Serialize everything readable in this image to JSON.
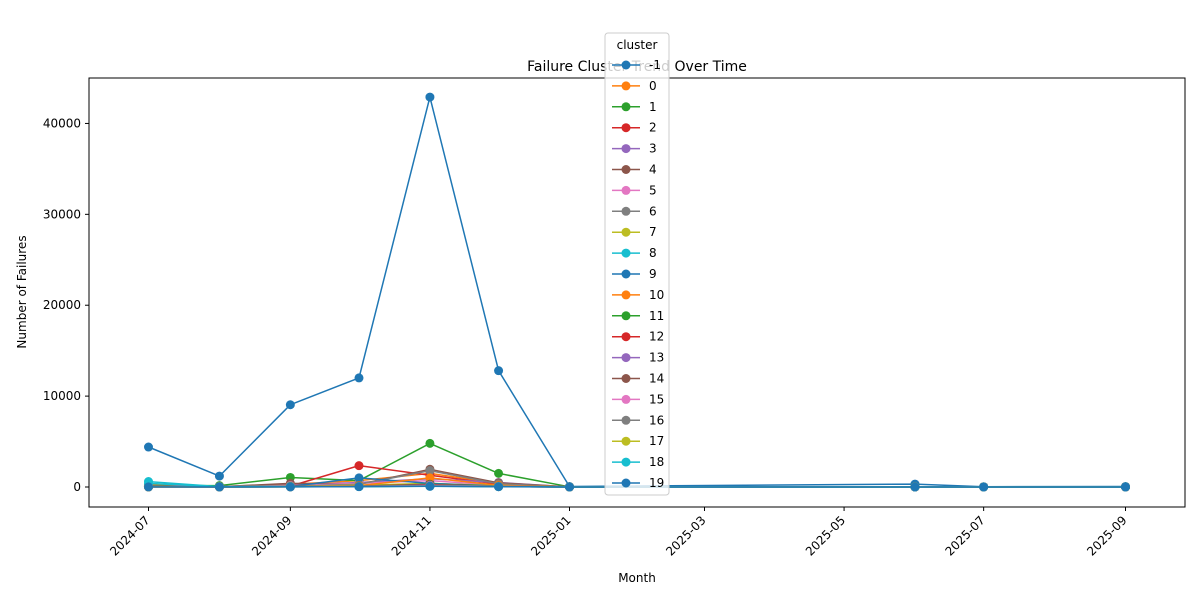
{
  "chart_data": {
    "type": "line",
    "title": "Failure Cluster Trend Over Time",
    "xlabel": "Month",
    "ylabel": "Number of Failures",
    "ylim": [
      -2200,
      45000
    ],
    "xlim": [
      "2024-06-05",
      "2025-09-27"
    ],
    "yticks": [
      0,
      10000,
      20000,
      30000,
      40000
    ],
    "xticks": [
      "2024-07",
      "2024-09",
      "2024-11",
      "2025-01",
      "2025-03",
      "2025-05",
      "2025-07",
      "2025-09"
    ],
    "legend": {
      "title": "cluster",
      "position": "upper center"
    },
    "grid": false,
    "markers": true,
    "series": [
      {
        "name": "-1",
        "color": "#1f77b4",
        "points": [
          [
            "2024-07-01",
            4400
          ],
          [
            "2024-08-01",
            1200
          ],
          [
            "2024-09-01",
            9050
          ],
          [
            "2024-10-01",
            12000
          ],
          [
            "2024-11-01",
            42900
          ],
          [
            "2024-12-01",
            12800
          ],
          [
            "2025-01-01",
            50
          ],
          [
            "2025-06-01",
            320
          ],
          [
            "2025-07-01",
            30
          ],
          [
            "2025-09-01",
            60
          ]
        ]
      },
      {
        "name": "0",
        "color": "#ff7f0e",
        "points": [
          [
            "2024-07-01",
            250
          ],
          [
            "2024-08-01",
            60
          ],
          [
            "2024-09-01",
            300
          ],
          [
            "2024-10-01",
            700
          ],
          [
            "2024-11-01",
            1500
          ],
          [
            "2024-12-01",
            400
          ],
          [
            "2025-01-01",
            10
          ],
          [
            "2025-06-01",
            20
          ],
          [
            "2025-07-01",
            5
          ],
          [
            "2025-09-01",
            5
          ]
        ]
      },
      {
        "name": "1",
        "color": "#2ca02c",
        "points": [
          [
            "2024-07-01",
            150
          ],
          [
            "2024-08-01",
            150
          ],
          [
            "2024-09-01",
            1050
          ],
          [
            "2024-10-01",
            700
          ],
          [
            "2024-11-01",
            4800
          ],
          [
            "2024-12-01",
            1500
          ],
          [
            "2025-01-01",
            20
          ],
          [
            "2025-06-01",
            30
          ],
          [
            "2025-07-01",
            10
          ],
          [
            "2025-09-01",
            10
          ]
        ]
      },
      {
        "name": "2",
        "color": "#d62728",
        "points": [
          [
            "2024-07-01",
            100
          ],
          [
            "2024-08-01",
            50
          ],
          [
            "2024-09-01",
            100
          ],
          [
            "2024-10-01",
            2350
          ],
          [
            "2024-11-01",
            1300
          ],
          [
            "2024-12-01",
            300
          ],
          [
            "2025-01-01",
            10
          ],
          [
            "2025-06-01",
            10
          ],
          [
            "2025-07-01",
            5
          ],
          [
            "2025-09-01",
            5
          ]
        ]
      },
      {
        "name": "3",
        "color": "#9467bd",
        "points": [
          [
            "2024-07-01",
            80
          ],
          [
            "2024-08-01",
            40
          ],
          [
            "2024-09-01",
            200
          ],
          [
            "2024-10-01",
            500
          ],
          [
            "2024-11-01",
            900
          ],
          [
            "2024-12-01",
            500
          ],
          [
            "2025-01-01",
            10
          ],
          [
            "2025-06-01",
            10
          ],
          [
            "2025-07-01",
            5
          ],
          [
            "2025-09-01",
            5
          ]
        ]
      },
      {
        "name": "4",
        "color": "#8c564b",
        "points": [
          [
            "2024-07-01",
            60
          ],
          [
            "2024-08-01",
            30
          ],
          [
            "2024-09-01",
            400
          ],
          [
            "2024-10-01",
            300
          ],
          [
            "2024-11-01",
            1950
          ],
          [
            "2024-12-01",
            450
          ],
          [
            "2025-01-01",
            10
          ],
          [
            "2025-06-01",
            10
          ],
          [
            "2025-07-01",
            5
          ],
          [
            "2025-09-01",
            5
          ]
        ]
      },
      {
        "name": "5",
        "color": "#e377c2",
        "points": [
          [
            "2024-07-01",
            50
          ],
          [
            "2024-08-01",
            20
          ],
          [
            "2024-09-01",
            150
          ],
          [
            "2024-10-01",
            400
          ],
          [
            "2024-11-01",
            700
          ],
          [
            "2024-12-01",
            200
          ],
          [
            "2025-01-01",
            5
          ],
          [
            "2025-06-01",
            10
          ],
          [
            "2025-07-01",
            5
          ],
          [
            "2025-09-01",
            5
          ]
        ]
      },
      {
        "name": "6",
        "color": "#7f7f7f",
        "points": [
          [
            "2024-07-01",
            40
          ],
          [
            "2024-08-01",
            20
          ],
          [
            "2024-09-01",
            100
          ],
          [
            "2024-10-01",
            300
          ],
          [
            "2024-11-01",
            1800
          ],
          [
            "2024-12-01",
            350
          ],
          [
            "2025-01-01",
            5
          ],
          [
            "2025-06-01",
            10
          ],
          [
            "2025-07-01",
            5
          ],
          [
            "2025-09-01",
            5
          ]
        ]
      },
      {
        "name": "7",
        "color": "#bcbd22",
        "points": [
          [
            "2024-07-01",
            30
          ],
          [
            "2024-08-01",
            10
          ],
          [
            "2024-09-01",
            80
          ],
          [
            "2024-10-01",
            200
          ],
          [
            "2024-11-01",
            400
          ],
          [
            "2024-12-01",
            150
          ],
          [
            "2025-01-01",
            5
          ],
          [
            "2025-06-01",
            5
          ],
          [
            "2025-07-01",
            5
          ],
          [
            "2025-09-01",
            5
          ]
        ]
      },
      {
        "name": "8",
        "color": "#17becf",
        "points": [
          [
            "2024-07-01",
            600
          ],
          [
            "2024-08-01",
            40
          ],
          [
            "2024-09-01",
            60
          ],
          [
            "2024-10-01",
            50
          ],
          [
            "2024-11-01",
            100
          ],
          [
            "2024-12-01",
            80
          ],
          [
            "2025-01-01",
            5
          ],
          [
            "2025-06-01",
            5
          ],
          [
            "2025-07-01",
            5
          ],
          [
            "2025-09-01",
            5
          ]
        ]
      },
      {
        "name": "9",
        "color": "#1f77b4",
        "points": [
          [
            "2024-07-01",
            20
          ],
          [
            "2024-08-01",
            10
          ],
          [
            "2024-09-01",
            50
          ],
          [
            "2024-10-01",
            1000
          ],
          [
            "2024-11-01",
            400
          ],
          [
            "2024-12-01",
            100
          ],
          [
            "2025-01-01",
            5
          ],
          [
            "2025-06-01",
            5
          ],
          [
            "2025-07-01",
            5
          ],
          [
            "2025-09-01",
            5
          ]
        ]
      },
      {
        "name": "10",
        "color": "#ff7f0e",
        "points": [
          [
            "2024-07-01",
            20
          ],
          [
            "2024-08-01",
            10
          ],
          [
            "2024-09-01",
            40
          ],
          [
            "2024-10-01",
            150
          ],
          [
            "2024-11-01",
            1000
          ],
          [
            "2024-12-01",
            200
          ],
          [
            "2025-01-01",
            5
          ],
          [
            "2025-06-01",
            5
          ],
          [
            "2025-07-01",
            5
          ],
          [
            "2025-09-01",
            5
          ]
        ]
      },
      {
        "name": "11",
        "color": "#2ca02c",
        "points": [
          [
            "2024-07-01",
            20
          ],
          [
            "2024-08-01",
            10
          ],
          [
            "2024-09-01",
            40
          ],
          [
            "2024-10-01",
            100
          ],
          [
            "2024-11-01",
            300
          ],
          [
            "2024-12-01",
            100
          ],
          [
            "2025-01-01",
            5
          ],
          [
            "2025-06-01",
            5
          ],
          [
            "2025-07-01",
            5
          ],
          [
            "2025-09-01",
            5
          ]
        ]
      },
      {
        "name": "12",
        "color": "#d62728",
        "points": [
          [
            "2024-07-01",
            15
          ],
          [
            "2024-08-01",
            10
          ],
          [
            "2024-09-01",
            30
          ],
          [
            "2024-10-01",
            100
          ],
          [
            "2024-11-01",
            250
          ],
          [
            "2024-12-01",
            80
          ],
          [
            "2025-01-01",
            5
          ],
          [
            "2025-06-01",
            5
          ],
          [
            "2025-07-01",
            5
          ],
          [
            "2025-09-01",
            5
          ]
        ]
      },
      {
        "name": "13",
        "color": "#9467bd",
        "points": [
          [
            "2024-07-01",
            15
          ],
          [
            "2024-08-01",
            10
          ],
          [
            "2024-09-01",
            30
          ],
          [
            "2024-10-01",
            80
          ],
          [
            "2024-11-01",
            200
          ],
          [
            "2024-12-01",
            80
          ],
          [
            "2025-01-01",
            5
          ],
          [
            "2025-06-01",
            5
          ],
          [
            "2025-07-01",
            5
          ],
          [
            "2025-09-01",
            5
          ]
        ]
      },
      {
        "name": "14",
        "color": "#8c564b",
        "points": [
          [
            "2024-07-01",
            10
          ],
          [
            "2024-08-01",
            10
          ],
          [
            "2024-09-01",
            20
          ],
          [
            "2024-10-01",
            80
          ],
          [
            "2024-11-01",
            150
          ],
          [
            "2024-12-01",
            60
          ],
          [
            "2025-01-01",
            5
          ],
          [
            "2025-06-01",
            5
          ],
          [
            "2025-07-01",
            5
          ],
          [
            "2025-09-01",
            5
          ]
        ]
      },
      {
        "name": "15",
        "color": "#e377c2",
        "points": [
          [
            "2024-07-01",
            10
          ],
          [
            "2024-08-01",
            5
          ],
          [
            "2024-09-01",
            20
          ],
          [
            "2024-10-01",
            60
          ],
          [
            "2024-11-01",
            150
          ],
          [
            "2024-12-01",
            60
          ],
          [
            "2025-01-01",
            5
          ],
          [
            "2025-06-01",
            5
          ],
          [
            "2025-07-01",
            5
          ],
          [
            "2025-09-01",
            5
          ]
        ]
      },
      {
        "name": "16",
        "color": "#7f7f7f",
        "points": [
          [
            "2024-07-01",
            10
          ],
          [
            "2024-08-01",
            5
          ],
          [
            "2024-09-01",
            20
          ],
          [
            "2024-10-01",
            60
          ],
          [
            "2024-11-01",
            120
          ],
          [
            "2024-12-01",
            50
          ],
          [
            "2025-01-01",
            5
          ],
          [
            "2025-06-01",
            5
          ],
          [
            "2025-07-01",
            5
          ],
          [
            "2025-09-01",
            5
          ]
        ]
      },
      {
        "name": "17",
        "color": "#bcbd22",
        "points": [
          [
            "2024-07-01",
            10
          ],
          [
            "2024-08-01",
            5
          ],
          [
            "2024-09-01",
            15
          ],
          [
            "2024-10-01",
            50
          ],
          [
            "2024-11-01",
            100
          ],
          [
            "2024-12-01",
            40
          ],
          [
            "2025-01-01",
            5
          ],
          [
            "2025-06-01",
            5
          ],
          [
            "2025-07-01",
            5
          ],
          [
            "2025-09-01",
            5
          ]
        ]
      },
      {
        "name": "18",
        "color": "#17becf",
        "points": [
          [
            "2024-07-01",
            400
          ],
          [
            "2024-08-01",
            20
          ],
          [
            "2024-09-01",
            30
          ],
          [
            "2024-10-01",
            40
          ],
          [
            "2024-11-01",
            80
          ],
          [
            "2024-12-01",
            40
          ],
          [
            "2025-01-01",
            5
          ],
          [
            "2025-06-01",
            5
          ],
          [
            "2025-07-01",
            5
          ],
          [
            "2025-09-01",
            5
          ]
        ]
      },
      {
        "name": "19",
        "color": "#1f77b4",
        "points": [
          [
            "2024-07-01",
            10
          ],
          [
            "2024-08-01",
            5
          ],
          [
            "2024-09-01",
            10
          ],
          [
            "2024-10-01",
            40
          ],
          [
            "2024-11-01",
            80
          ],
          [
            "2024-12-01",
            30
          ],
          [
            "2025-01-01",
            5
          ],
          [
            "2025-06-01",
            5
          ],
          [
            "2025-07-01",
            5
          ],
          [
            "2025-09-01",
            5
          ]
        ]
      }
    ]
  }
}
